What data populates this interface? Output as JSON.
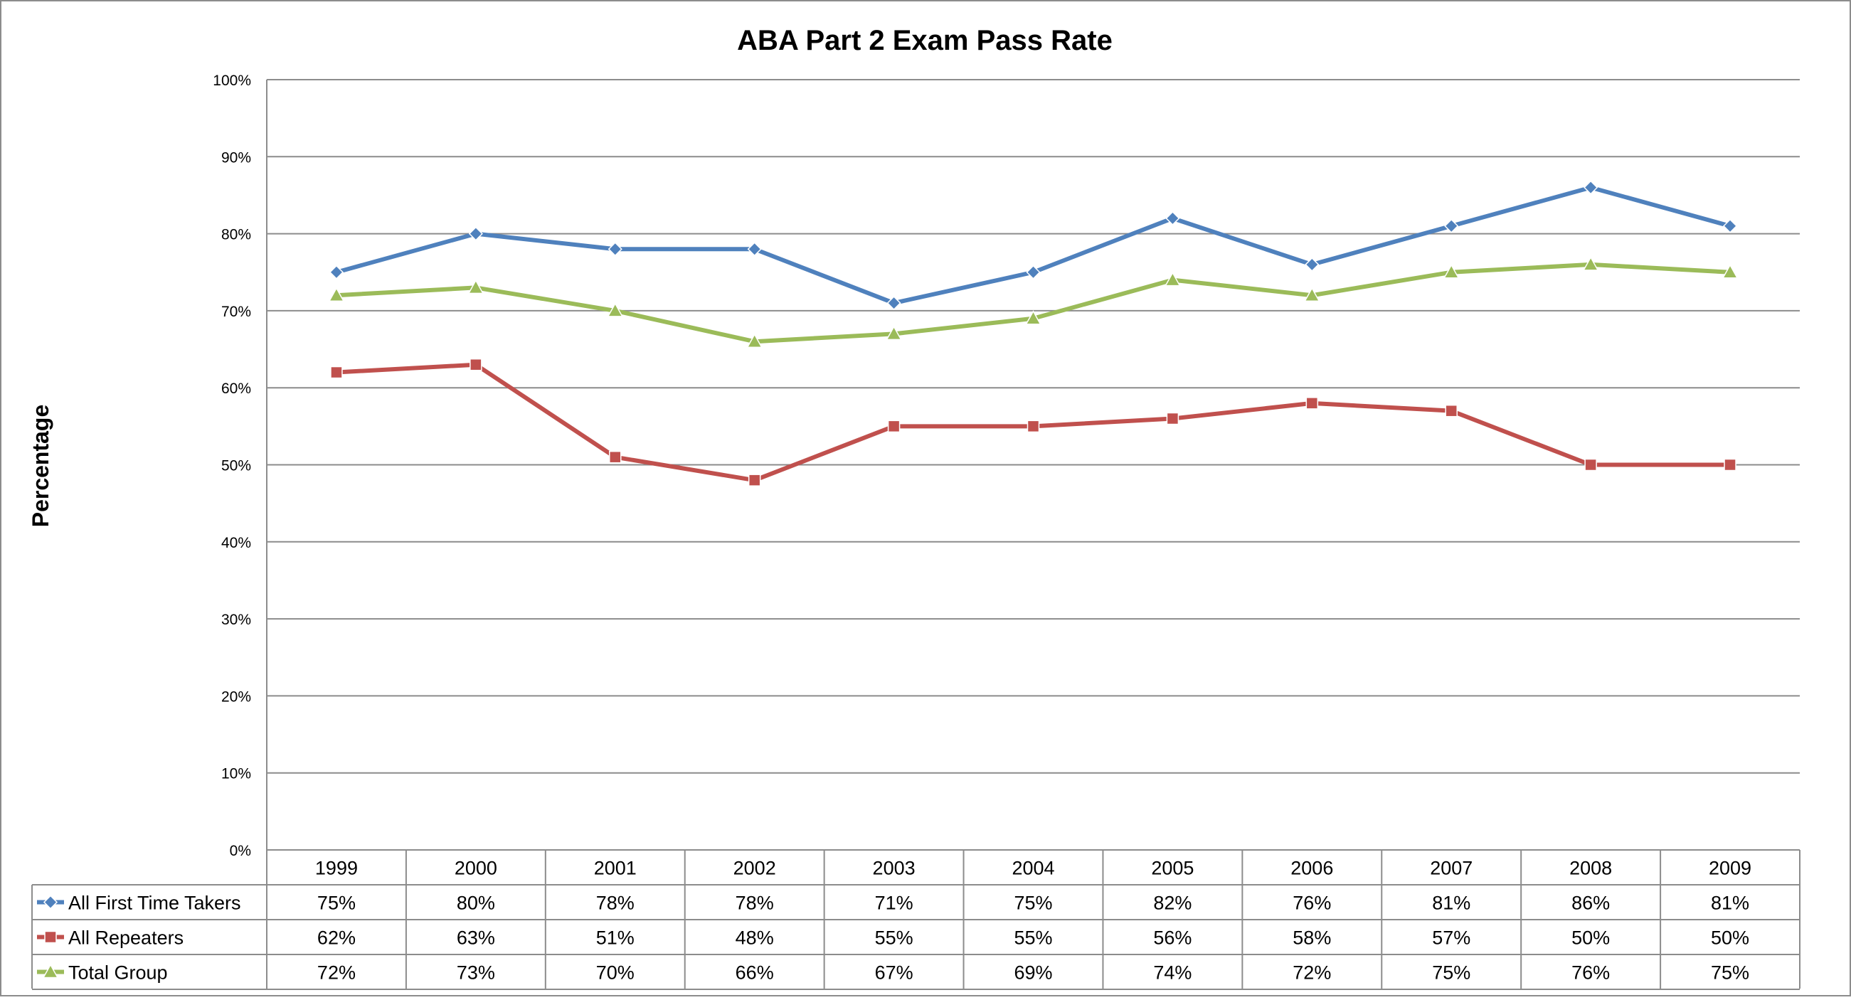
{
  "chart_data": {
    "type": "line",
    "title": "ABA Part 2 Exam Pass Rate",
    "xlabel": "",
    "ylabel": "Percentage",
    "ylim": [
      0,
      100
    ],
    "y_ticks": [
      "0%",
      "10%",
      "20%",
      "30%",
      "40%",
      "50%",
      "60%",
      "70%",
      "80%",
      "90%",
      "100%"
    ],
    "grid": true,
    "legend": "data-table",
    "categories": [
      "1999",
      "2000",
      "2001",
      "2002",
      "2003",
      "2004",
      "2005",
      "2006",
      "2007",
      "2008",
      "2009"
    ],
    "series": [
      {
        "name": "All First Time Takers",
        "color": "#4f81bd",
        "marker": "diamond",
        "values": [
          75,
          80,
          78,
          78,
          71,
          75,
          82,
          76,
          81,
          86,
          81
        ],
        "labels": [
          "75%",
          "80%",
          "78%",
          "78%",
          "71%",
          "75%",
          "82%",
          "76%",
          "81%",
          "86%",
          "81%"
        ]
      },
      {
        "name": "All Repeaters",
        "color": "#c0504d",
        "marker": "square",
        "values": [
          62,
          63,
          51,
          48,
          55,
          55,
          56,
          58,
          57,
          50,
          50
        ],
        "labels": [
          "62%",
          "63%",
          "51%",
          "48%",
          "55%",
          "55%",
          "56%",
          "58%",
          "57%",
          "50%",
          "50%"
        ]
      },
      {
        "name": "Total Group",
        "color": "#9bbb59",
        "marker": "triangle",
        "values": [
          72,
          73,
          70,
          66,
          67,
          69,
          74,
          72,
          75,
          76,
          75
        ],
        "labels": [
          "72%",
          "73%",
          "70%",
          "66%",
          "67%",
          "69%",
          "74%",
          "72%",
          "75%",
          "76%",
          "75%"
        ]
      }
    ]
  }
}
